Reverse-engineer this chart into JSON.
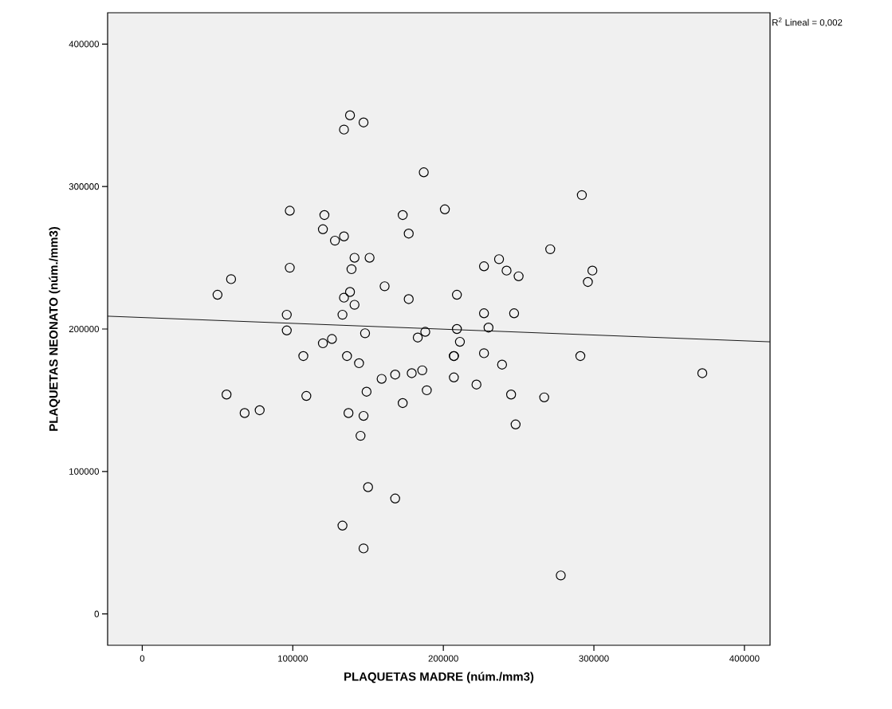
{
  "chart_data": {
    "type": "scatter",
    "xlabel": "PLAQUETAS MADRE (núm./mm3)",
    "ylabel": "PLAQUETAS NEONATO (núm./mm3)",
    "annotations": [
      "R$^{2}$ Lineal = 0,002"
    ],
    "xlim": [
      -23000,
      417000
    ],
    "ylim": [
      -22000,
      422000
    ],
    "xticks": [
      0,
      100000,
      200000,
      300000,
      400000
    ],
    "yticks": [
      0,
      100000,
      200000,
      300000,
      400000
    ],
    "series": [
      {
        "color": "#000000",
        "marker": "circle",
        "x": [
          138000,
          147000,
          134000,
          187000,
          98000,
          121000,
          173000,
          120000,
          177000,
          128000,
          134000,
          141000,
          151000,
          139000,
          98000,
          59000,
          50000,
          161000,
          138000,
          134000,
          141000,
          177000,
          96000,
          133000,
          96000,
          148000,
          126000,
          120000,
          188000,
          183000,
          107000,
          136000,
          144000,
          159000,
          168000,
          179000,
          186000,
          56000,
          109000,
          149000,
          189000,
          173000,
          68000,
          78000,
          137000,
          147000,
          145000,
          150000,
          168000,
          133000,
          147000,
          201000,
          292000,
          271000,
          237000,
          227000,
          242000,
          250000,
          299000,
          296000,
          209000,
          227000,
          247000,
          209000,
          230000,
          211000,
          207000,
          207000,
          227000,
          291000,
          239000,
          372000,
          207000,
          222000,
          245000,
          267000,
          248000,
          278000
        ],
        "values": [
          350000,
          345000,
          340000,
          310000,
          283000,
          280000,
          280000,
          270000,
          267000,
          262000,
          265000,
          250000,
          250000,
          242000,
          243000,
          235000,
          224000,
          230000,
          226000,
          222000,
          217000,
          221000,
          210000,
          210000,
          199000,
          197000,
          193000,
          190000,
          198000,
          194000,
          181000,
          181000,
          176000,
          165000,
          168000,
          169000,
          171000,
          154000,
          153000,
          156000,
          157000,
          148000,
          141000,
          143000,
          141000,
          139000,
          125000,
          89000,
          81000,
          62000,
          46000,
          284000,
          294000,
          256000,
          249000,
          244000,
          241000,
          237000,
          241000,
          233000,
          224000,
          211000,
          211000,
          200000,
          201000,
          191000,
          181000,
          181000,
          183000,
          181000,
          175000,
          169000,
          166000,
          161000,
          154000,
          152000,
          133000,
          27000
        ]
      },
      {
        "type": "line",
        "marker": "none",
        "color": "#000000",
        "x": [
          -23000,
          417000
        ],
        "values": [
          209000,
          191000
        ]
      }
    ]
  }
}
